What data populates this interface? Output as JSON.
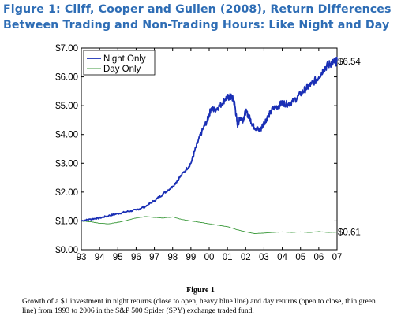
{
  "heading": "Figure 1:  Cliff, Cooper and Gullen (2008), Return Differences Between Trading and Non-Trading Hours:  Like Night and Day",
  "caption": {
    "title": "Figure 1",
    "text": "Growth of a $1 investment in night returns (close to open, heavy blue line) and day returns (open to close, thin green line) from 1993 to 2006 in the S&P 500 Spider (SPY) exchange traded fund."
  },
  "chart_data": {
    "type": "line",
    "title": "",
    "xlabel": "",
    "ylabel": "",
    "xlim": [
      1993,
      2007
    ],
    "ylim": [
      0,
      7
    ],
    "xticks": [
      1993,
      1994,
      1995,
      1996,
      1997,
      1998,
      1999,
      2000,
      2001,
      2002,
      2003,
      2004,
      2005,
      2006,
      2007
    ],
    "xtick_labels": [
      "93",
      "94",
      "95",
      "96",
      "97",
      "98",
      "99",
      "00",
      "01",
      "02",
      "03",
      "04",
      "05",
      "06",
      "07"
    ],
    "yticks": [
      0,
      1,
      2,
      3,
      4,
      5,
      6,
      7
    ],
    "ytick_labels": [
      "$0.00",
      "$1.00",
      "$2.00",
      "$3.00",
      "$4.00",
      "$5.00",
      "$6.00",
      "$7.00"
    ],
    "legend_position": "top-left",
    "colors": {
      "night": "#1a2fb5",
      "day": "#3c9a3c"
    },
    "series": [
      {
        "name": "Night Only",
        "end_label": "$6.54",
        "x": [
          1993.0,
          1993.5,
          1994.0,
          1994.5,
          1995.0,
          1995.5,
          1996.0,
          1996.5,
          1997.0,
          1997.5,
          1998.0,
          1998.5,
          1999.0,
          1999.3,
          1999.6,
          1999.9,
          2000.1,
          2000.3,
          2000.6,
          2000.9,
          2001.1,
          2001.25,
          2001.4,
          2001.55,
          2001.7,
          2001.85,
          2002.0,
          2002.2,
          2002.4,
          2002.6,
          2002.8,
          2003.0,
          2003.2,
          2003.5,
          2003.8,
          2004.0,
          2004.3,
          2004.6,
          2005.0,
          2005.3,
          2005.6,
          2006.0,
          2006.3,
          2006.6,
          2006.8,
          2007.0
        ],
        "values": [
          1.0,
          1.06,
          1.1,
          1.18,
          1.25,
          1.32,
          1.38,
          1.5,
          1.7,
          1.95,
          2.2,
          2.6,
          3.0,
          3.6,
          4.1,
          4.5,
          4.9,
          4.85,
          5.0,
          5.25,
          5.3,
          5.3,
          5.05,
          4.3,
          4.6,
          4.5,
          4.8,
          4.6,
          4.3,
          4.2,
          4.15,
          4.4,
          4.6,
          4.9,
          5.0,
          5.1,
          5.05,
          5.15,
          5.4,
          5.6,
          5.75,
          6.0,
          6.3,
          6.45,
          6.5,
          6.54
        ]
      },
      {
        "name": "Day Only",
        "end_label": "$0.61",
        "x": [
          1993.0,
          1993.5,
          1994.0,
          1994.5,
          1995.0,
          1995.5,
          1996.0,
          1996.5,
          1997.0,
          1997.5,
          1998.0,
          1998.5,
          1999.0,
          1999.5,
          2000.0,
          2000.5,
          2001.0,
          2001.5,
          2002.0,
          2002.5,
          2003.0,
          2003.5,
          2004.0,
          2004.5,
          2005.0,
          2005.5,
          2006.0,
          2006.5,
          2007.0
        ],
        "values": [
          1.0,
          0.97,
          0.92,
          0.9,
          0.95,
          1.02,
          1.1,
          1.15,
          1.12,
          1.1,
          1.14,
          1.05,
          1.0,
          0.95,
          0.9,
          0.85,
          0.8,
          0.7,
          0.62,
          0.56,
          0.58,
          0.6,
          0.62,
          0.6,
          0.62,
          0.6,
          0.63,
          0.6,
          0.61
        ]
      }
    ]
  }
}
